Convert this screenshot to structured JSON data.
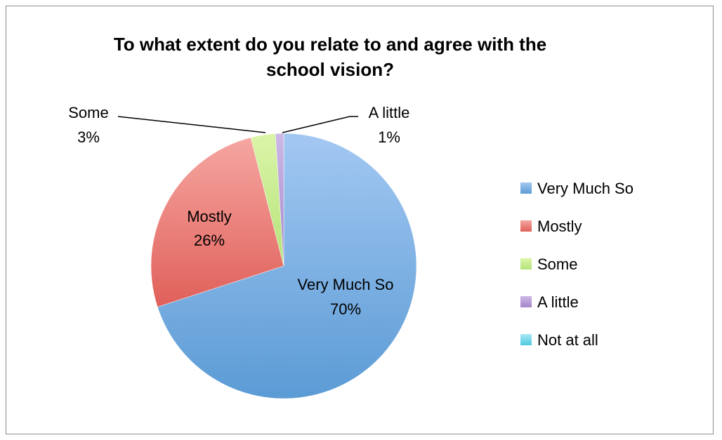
{
  "chart_data": {
    "type": "pie",
    "title_lines": [
      "To what extent do you relate to and agree with the",
      "school vision?"
    ],
    "categories": [
      "Very Much So",
      "Mostly",
      "Some",
      "A little",
      "Not at all"
    ],
    "values": [
      70,
      26,
      3,
      1,
      0
    ],
    "data_labels": {
      "names": [
        "Very Much So",
        "Mostly",
        "Some",
        "A little"
      ],
      "percents": [
        "70%",
        "26%",
        "3%",
        "1%"
      ]
    },
    "colors": [
      "#5b9bd5",
      "#e0605a",
      "#b5e37a",
      "#a586c9",
      "#4fc9e0"
    ],
    "colors_light": [
      "#a3c8f2",
      "#f6a6a1",
      "#dbf5a8",
      "#cdb8e6",
      "#a8e8f3"
    ],
    "legend_position": "right"
  }
}
